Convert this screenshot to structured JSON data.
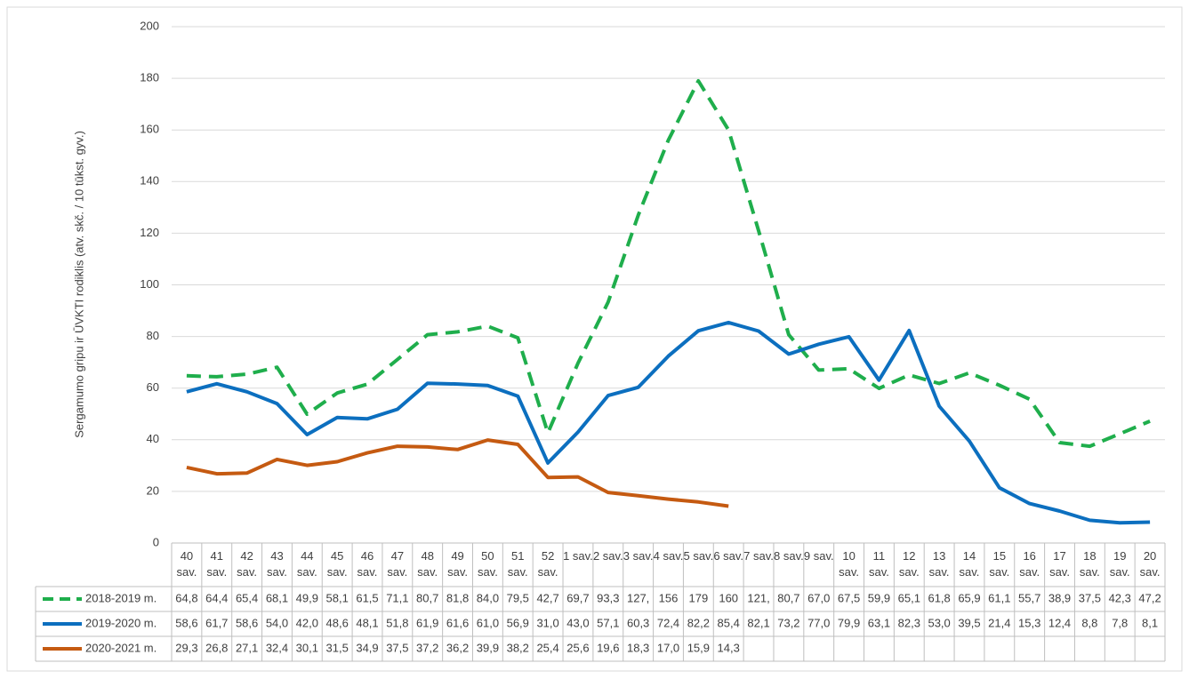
{
  "chart_data": {
    "type": "line",
    "ylabel": "Sergamumo gripu ir ŪVKTI rodiklis (atv. skč. / 10 tūkst. gyv.)",
    "categories": [
      "40 sav.",
      "41 sav.",
      "42 sav.",
      "43 sav.",
      "44 sav.",
      "45 sav.",
      "46 sav.",
      "47 sav.",
      "48 sav.",
      "49 sav.",
      "50 sav.",
      "51 sav.",
      "52 sav.",
      "1 sav.",
      "2 sav.",
      "3 sav.",
      "4 sav.",
      "5 sav.",
      "6 sav.",
      "7 sav.",
      "8 sav.",
      "9 sav.",
      "10 sav.",
      "11 sav.",
      "12 sav.",
      "13 sav.",
      "14 sav.",
      "15 sav.",
      "16 sav.",
      "17 sav.",
      "18 sav.",
      "19 sav.",
      "20 sav."
    ],
    "ylim": [
      0,
      200
    ],
    "yticks": [
      0,
      20,
      40,
      60,
      80,
      100,
      120,
      140,
      160,
      180,
      200
    ],
    "grid": true,
    "series": [
      {
        "name": "2018-2019 m.",
        "color": "#1fae4c",
        "style": "dashed",
        "values": [
          64.8,
          64.4,
          65.4,
          68.1,
          49.9,
          58.1,
          61.5,
          71.1,
          80.7,
          81.8,
          84.0,
          79.5,
          42.7,
          69.7,
          93.3,
          127,
          156,
          179,
          160,
          121,
          80.7,
          67.0,
          67.5,
          59.9,
          65.1,
          61.8,
          65.9,
          61.1,
          55.7,
          38.9,
          37.5,
          42.3,
          47.2
        ],
        "value_labels": [
          "64,8",
          "64,4",
          "65,4",
          "68,1",
          "49,9",
          "58,1",
          "61,5",
          "71,1",
          "80,7",
          "81,8",
          "84,0",
          "79,5",
          "42,7",
          "69,7",
          "93,3",
          "127,",
          "156",
          "179",
          "160",
          "121,",
          "80,7",
          "67,0",
          "67,5",
          "59,9",
          "65,1",
          "61,8",
          "65,9",
          "61,1",
          "55,7",
          "38,9",
          "37,5",
          "42,3",
          "47,2"
        ]
      },
      {
        "name": "2019-2020 m.",
        "color": "#0c6fbf",
        "style": "solid",
        "values": [
          58.6,
          61.7,
          58.6,
          54.0,
          42.0,
          48.6,
          48.1,
          51.8,
          61.9,
          61.6,
          61.0,
          56.9,
          31.0,
          43.0,
          57.1,
          60.3,
          72.4,
          82.2,
          85.4,
          82.1,
          73.2,
          77.0,
          79.9,
          63.1,
          82.3,
          53.0,
          39.5,
          21.4,
          15.3,
          12.4,
          8.8,
          7.8,
          8.1
        ],
        "value_labels": [
          "58,6",
          "61,7",
          "58,6",
          "54,0",
          "42,0",
          "48,6",
          "48,1",
          "51,8",
          "61,9",
          "61,6",
          "61,0",
          "56,9",
          "31,0",
          "43,0",
          "57,1",
          "60,3",
          "72,4",
          "82,2",
          "85,4",
          "82,1",
          "73,2",
          "77,0",
          "79,9",
          "63,1",
          "82,3",
          "53,0",
          "39,5",
          "21,4",
          "15,3",
          "12,4",
          "8,8",
          "7,8",
          "8,1"
        ]
      },
      {
        "name": "2020-2021 m.",
        "color": "#c55a11",
        "style": "solid",
        "values": [
          29.3,
          26.8,
          27.1,
          32.4,
          30.1,
          31.5,
          34.9,
          37.5,
          37.2,
          36.2,
          39.9,
          38.2,
          25.4,
          25.6,
          19.6,
          18.3,
          17.0,
          15.9,
          14.3,
          null,
          null,
          null,
          null,
          null,
          null,
          null,
          null,
          null,
          null,
          null,
          null,
          null,
          null
        ],
        "value_labels": [
          "29,3",
          "26,8",
          "27,1",
          "32,4",
          "30,1",
          "31,5",
          "34,9",
          "37,5",
          "37,2",
          "36,2",
          "39,9",
          "38,2",
          "25,4",
          "25,6",
          "19,6",
          "18,3",
          "17,0",
          "15,9",
          "14,3",
          null,
          null,
          null,
          null,
          null,
          null,
          null,
          null,
          null,
          null,
          null,
          null,
          null,
          null
        ]
      }
    ]
  }
}
